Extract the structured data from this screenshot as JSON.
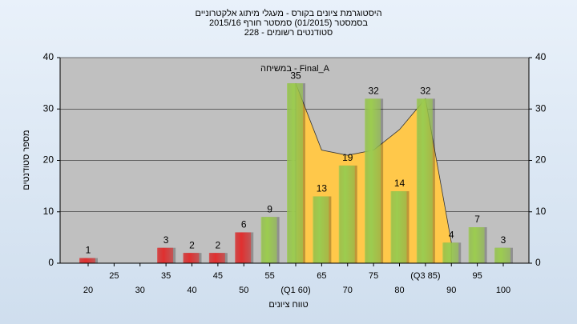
{
  "chart_data": {
    "type": "bar",
    "title": [
      "היסטוגרמת ציונים בקורס - מעגלי מיתוג אלקטרוניים",
      "בסמסטר  (01/2015)  סמסטר חורף 2015/16",
      "סטודנטים רשומים - 228"
    ],
    "annotation": "במשיחה - Final_A",
    "x_label": "טווח ציונים",
    "y_label": "מספר סטודנטים",
    "categories": [
      "20",
      "25",
      "30",
      "35",
      "40",
      "45",
      "50",
      "55",
      "(Q1 60)",
      "65",
      "70",
      "75",
      "80",
      "(Q3 85)",
      "90",
      "95",
      "100"
    ],
    "values": [
      1,
      null,
      null,
      3,
      2,
      2,
      6,
      9,
      35,
      13,
      19,
      32,
      14,
      32,
      4,
      7,
      3
    ],
    "colors": [
      "#e03030",
      null,
      null,
      "#e03030",
      "#e03030",
      "#e03030",
      "#e03030",
      "#9ccc50",
      "#9ccc50",
      "#9ccc50",
      "#9ccc50",
      "#9ccc50",
      "#9ccc50",
      "#9ccc50",
      "#9ccc50",
      "#9ccc50",
      "#9ccc50"
    ],
    "area": {
      "color": "#ffc84a",
      "values": [
        null,
        null,
        null,
        null,
        null,
        null,
        null,
        null,
        35,
        22,
        21,
        22,
        26,
        32,
        4,
        null,
        null
      ]
    },
    "ylim": [
      0,
      40
    ],
    "yticks": [
      0,
      10,
      20,
      30,
      40
    ],
    "grid": true
  }
}
